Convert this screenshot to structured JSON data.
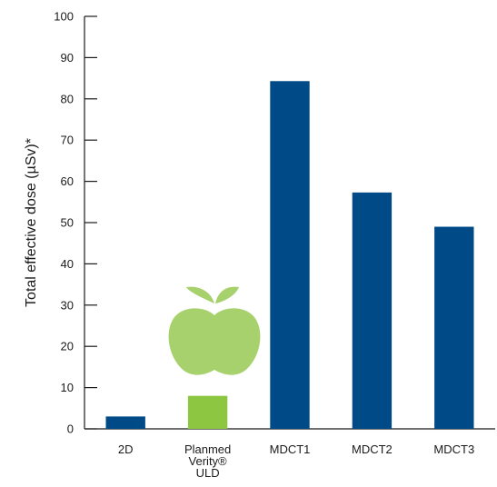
{
  "chart_data": {
    "type": "bar",
    "categories": [
      "2D",
      "Planmed Verity® ULD",
      "MDCT1",
      "MDCT2",
      "MDCT3"
    ],
    "category_label_lines": [
      [
        "2D"
      ],
      [
        "Planmed",
        "Verity®",
        "ULD"
      ],
      [
        "MDCT1"
      ],
      [
        "MDCT2"
      ],
      [
        "MDCT3"
      ]
    ],
    "values": [
      3,
      8,
      84.3,
      57.3,
      49
    ],
    "bar_colors": [
      "#004a87",
      "#8dc641",
      "#004a87",
      "#004a87",
      "#004a87"
    ],
    "ylabel": "Total effective dose (µSv)*",
    "xlabel": "",
    "title": "",
    "ylim": [
      0,
      100
    ],
    "yticks": [
      0,
      10,
      20,
      30,
      40,
      50,
      60,
      70,
      80,
      90,
      100
    ],
    "grid": false,
    "highlight_icon": "apple-icon",
    "colors": {
      "primary": "#004a87",
      "highlight": "#8dc641",
      "icon": "#a6d16c"
    }
  }
}
